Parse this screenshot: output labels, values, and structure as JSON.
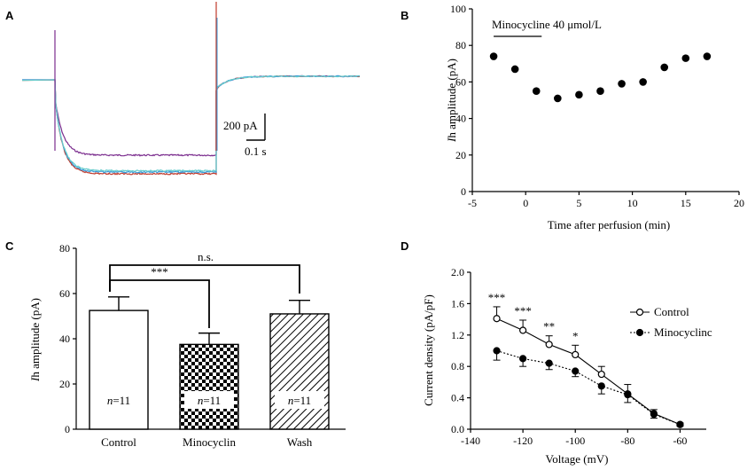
{
  "panels": [
    "A",
    "B",
    "C",
    "D"
  ],
  "chart_data": [
    {
      "panel": "A",
      "type": "line",
      "series": [
        {
          "name": "",
          "color": "#7B2D8E",
          "steady": -1.7
        },
        {
          "name": "",
          "color": "#C0392B",
          "steady": -2.12
        },
        {
          "name": "",
          "color": "#3A9AD9",
          "steady": -2.08
        },
        {
          "name": "",
          "color": "#66CCCC",
          "steady": -2.05
        }
      ],
      "scalebar": {
        "y_label": "200 pA",
        "x_label": "0.1 s"
      }
    },
    {
      "panel": "B",
      "type": "scatter",
      "xlabel_pre": "Time after perfusion (min)",
      "ylabel_italic": "I",
      "ylabel_rest": "h amplitude (pA)",
      "annotation": "Minocycline 40 μmol/L",
      "bar_range": [
        -3,
        1.5
      ],
      "xlim": [
        -5,
        20
      ],
      "ylim": [
        0,
        100
      ],
      "xticks": [
        "-5",
        "0",
        "5",
        "10",
        "15",
        "20"
      ],
      "yticks": [
        "0",
        "20",
        "40",
        "60",
        "80",
        "100"
      ],
      "x": [
        -3,
        -1,
        1,
        3,
        5,
        7,
        9,
        11,
        13,
        15,
        17
      ],
      "y": [
        74,
        67,
        55,
        51,
        53,
        55,
        59,
        60,
        68,
        73,
        74
      ]
    },
    {
      "panel": "C",
      "type": "bar",
      "ylabel_italic": "I",
      "ylabel_rest": "h amplitude (pA)",
      "categories": [
        "Control",
        "Minocyclin",
        "Wash"
      ],
      "values": [
        52.5,
        37.5,
        51
      ],
      "errors": [
        6,
        5,
        6
      ],
      "n_italic": "n",
      "n_labels": [
        "=11",
        "=11",
        "=11"
      ],
      "ylim": [
        0,
        80
      ],
      "yticks": [
        "0",
        "20",
        "40",
        "60",
        "80"
      ],
      "sig_top": "n.s.",
      "sig_mid": "***"
    },
    {
      "panel": "D",
      "type": "line",
      "xlabel": "Voltage (mV)",
      "ylabel": "Current density (pA/pF)",
      "xlim": [
        -140,
        -50
      ],
      "ylim": [
        0,
        2.0
      ],
      "xticks": [
        "-140",
        "-120",
        "-100",
        "-80",
        "-60"
      ],
      "yticks": [
        "0.0",
        "0.4",
        "0.8",
        "1.2",
        "1.6",
        "2.0"
      ],
      "x": [
        -130,
        -120,
        -110,
        -100,
        -90,
        -80,
        -70,
        -60
      ],
      "series": [
        {
          "name": "Control",
          "values": [
            1.41,
            1.26,
            1.08,
            0.95,
            0.7,
            0.45,
            0.2,
            0.06
          ],
          "errors": [
            0.15,
            0.13,
            0.11,
            0.12,
            0.1,
            0.12,
            0.05,
            0.02
          ]
        },
        {
          "name": "Minocyclinc",
          "values": [
            1.0,
            0.9,
            0.84,
            0.74,
            0.55,
            0.44,
            0.19,
            0.06
          ],
          "errors": [
            0.12,
            0.1,
            0.08,
            0.07,
            0.1,
            0.1,
            0.05,
            0.02
          ]
        }
      ],
      "stars": [
        "***",
        "***",
        "**",
        "*"
      ]
    }
  ]
}
